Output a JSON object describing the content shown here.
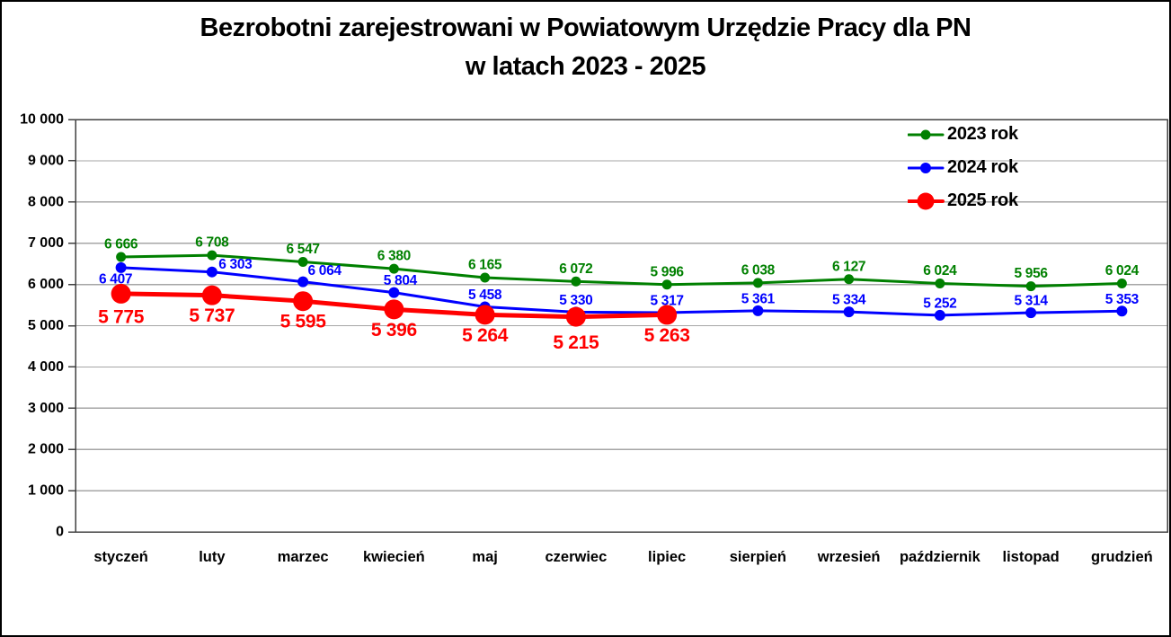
{
  "title": {
    "line1": "Bezrobotni zarejestrowani w Powiatowym Urzędzie Pracy dla PN",
    "line2": "w latach 2023 - 2025"
  },
  "colors": {
    "green": "#008000",
    "blue": "#0000FF",
    "red": "#FF0000",
    "gridline": "#A6A6A6",
    "axis": "#404040",
    "text": "#000000",
    "background": "#FFFFFF"
  },
  "chart_data": {
    "type": "line",
    "title": "Bezrobotni zarejestrowani w Powiatowym Urzędzie Pracy dla PN w latach 2023 - 2025",
    "xlabel": "",
    "ylabel": "",
    "categories": [
      "styczeń",
      "luty",
      "marzec",
      "kwiecień",
      "maj",
      "czerwiec",
      "lipiec",
      "sierpień",
      "wrzesień",
      "październik",
      "listopad",
      "grudzień"
    ],
    "series": [
      {
        "name": "2023 rok",
        "color": "#008000",
        "values": [
          6666,
          6708,
          6547,
          6380,
          6165,
          6072,
          5996,
          6038,
          6127,
          6024,
          5956,
          6024
        ],
        "marker_radius": 5.5,
        "line_width": 3,
        "label_font_size": 15.5,
        "label_dx": 0,
        "label_dy": -14,
        "label_overrides": {}
      },
      {
        "name": "2024 rok",
        "color": "#0000FF",
        "values": [
          6407,
          6303,
          6064,
          5804,
          5458,
          5330,
          5317,
          5361,
          5334,
          5252,
          5314,
          5353
        ],
        "marker_radius": 6,
        "line_width": 3,
        "label_font_size": 15.5,
        "label_dx": 0,
        "label_dy": -13,
        "label_overrides": {
          "0": {
            "dx": -6,
            "dy": 13
          },
          "1": {
            "dx": 26,
            "dy": -8
          },
          "2": {
            "dx": 24,
            "dy": -12
          },
          "3": {
            "dx": 7,
            "dy": -13
          }
        }
      },
      {
        "name": "2025 rok",
        "color": "#FF0000",
        "values": [
          5775,
          5737,
          5595,
          5396,
          5264,
          5215,
          5263
        ],
        "marker_radius": 11,
        "line_width": 5,
        "label_font_size": 21,
        "label_dx": 0,
        "label_dy": 23,
        "label_overrides": {
          "0": {
            "dy": 26
          },
          "5": {
            "dy": 29
          }
        }
      }
    ],
    "ylim": [
      0,
      10000
    ],
    "ytick_step": 1000,
    "y_tick_labels": [
      "0",
      "1 000",
      "2 000",
      "3 000",
      "4 000",
      "5 000",
      "6 000",
      "7 000",
      "8 000",
      "9 000",
      "10 000"
    ],
    "grid": true,
    "legend_position": "top-right",
    "legend_entries": [
      "2023 rok",
      "2024 rok",
      "2025 rok"
    ],
    "number_format": "space-thousands",
    "data_labels_visible": true
  }
}
